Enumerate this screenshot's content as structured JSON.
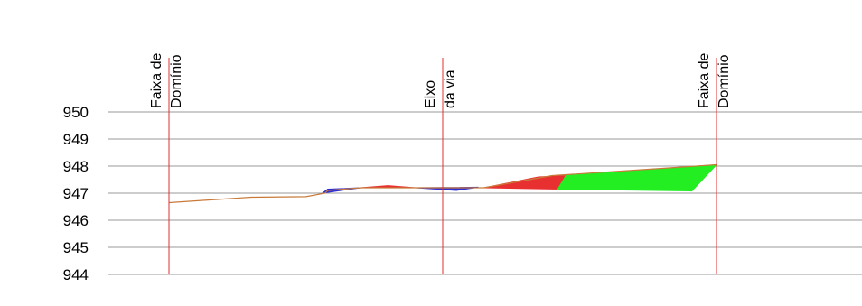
{
  "chart_data": {
    "type": "area",
    "y_ticks": [
      "950",
      "949",
      "948",
      "947",
      "946",
      "945",
      "944"
    ],
    "ylim": [
      944,
      950
    ],
    "grid": true,
    "markers": [
      {
        "lines": [
          "Faixa de",
          "Domínio"
        ],
        "color": "#e03030"
      },
      {
        "lines": [
          "Eixo",
          "da via"
        ],
        "color": "#e03030"
      },
      {
        "lines": [
          "Faixa de",
          "Domínio"
        ],
        "color": "#e03030"
      }
    ],
    "terrain_line": {
      "color": "#c87a3a",
      "points": [
        [
          -10,
          946.65
        ],
        [
          -7,
          946.85
        ],
        [
          -5,
          946.87
        ],
        [
          -4.3,
          947.0
        ],
        [
          -4.2,
          947.1
        ],
        [
          -3,
          947.2
        ],
        [
          -1,
          947.2
        ],
        [
          1.5,
          947.2
        ],
        [
          4,
          947.65
        ],
        [
          10,
          948.05
        ]
      ]
    },
    "fill_areas": [
      {
        "name": "",
        "color": "#3030d0",
        "points": [
          [
            -4.4,
            947.0
          ],
          [
            -4.2,
            947.15
          ],
          [
            -3,
            947.2
          ],
          [
            -4.4,
            947.0
          ]
        ]
      },
      {
        "name": "",
        "color": "#e83030",
        "points": [
          [
            -3,
            947.2
          ],
          [
            -2,
            947.28
          ],
          [
            -1,
            947.2
          ],
          [
            -3,
            947.2
          ]
        ]
      },
      {
        "name": "",
        "color": "#3030d0",
        "points": [
          [
            -1,
            947.2
          ],
          [
            0.5,
            947.1
          ],
          [
            1.3,
            947.22
          ],
          [
            -1,
            947.2
          ]
        ]
      },
      {
        "name": "",
        "color": "#e83030",
        "points": [
          [
            1.5,
            947.2
          ],
          [
            3.5,
            947.6
          ],
          [
            4.5,
            947.65
          ],
          [
            4.2,
            947.15
          ],
          [
            1.5,
            947.2
          ]
        ]
      },
      {
        "name": "",
        "color": "#22ee22",
        "points": [
          [
            4.5,
            947.65
          ],
          [
            10,
            948.05
          ],
          [
            9.1,
            947.08
          ],
          [
            4.2,
            947.15
          ],
          [
            4.5,
            947.65
          ]
        ]
      }
    ]
  }
}
